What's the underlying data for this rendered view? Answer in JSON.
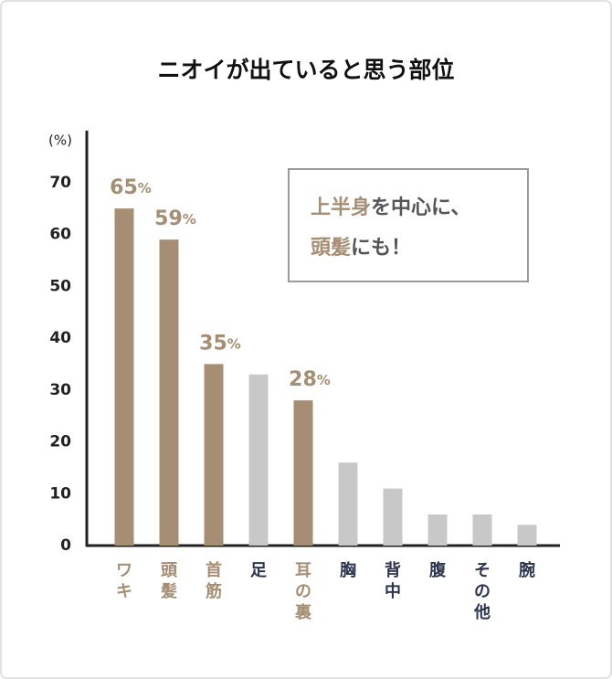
{
  "chart_data": {
    "type": "bar",
    "title": "ニオイが出ていると思う部位",
    "y_label": "(%)",
    "categories": [
      "ワキ",
      "頭髪",
      "首筋",
      "足",
      "耳の裏",
      "胸",
      "背中",
      "腹",
      "その他",
      "腕"
    ],
    "values": [
      65,
      59,
      35,
      33,
      28,
      16,
      11,
      6,
      6,
      4
    ],
    "value_labels": [
      "65%",
      "59%",
      "35%",
      null,
      "28%",
      null,
      null,
      null,
      null,
      null
    ],
    "highlighted": [
      true,
      true,
      true,
      false,
      true,
      false,
      false,
      false,
      false,
      false
    ],
    "highlight_color": "#a58e74",
    "base_color": "#c8c8c8",
    "category_color": "#2d3550",
    "ylim": [
      0,
      80
    ],
    "yticks": [
      0,
      10,
      20,
      30,
      40,
      50,
      60,
      70
    ],
    "grid": false,
    "annotation": {
      "lines": [
        [
          {
            "text": "上半身",
            "emphasis": true
          },
          {
            "text": "を中心に、",
            "emphasis": false
          }
        ],
        [
          {
            "text": "頭髪",
            "emphasis": true
          },
          {
            "text": "にも！",
            "emphasis": false
          }
        ]
      ]
    }
  }
}
